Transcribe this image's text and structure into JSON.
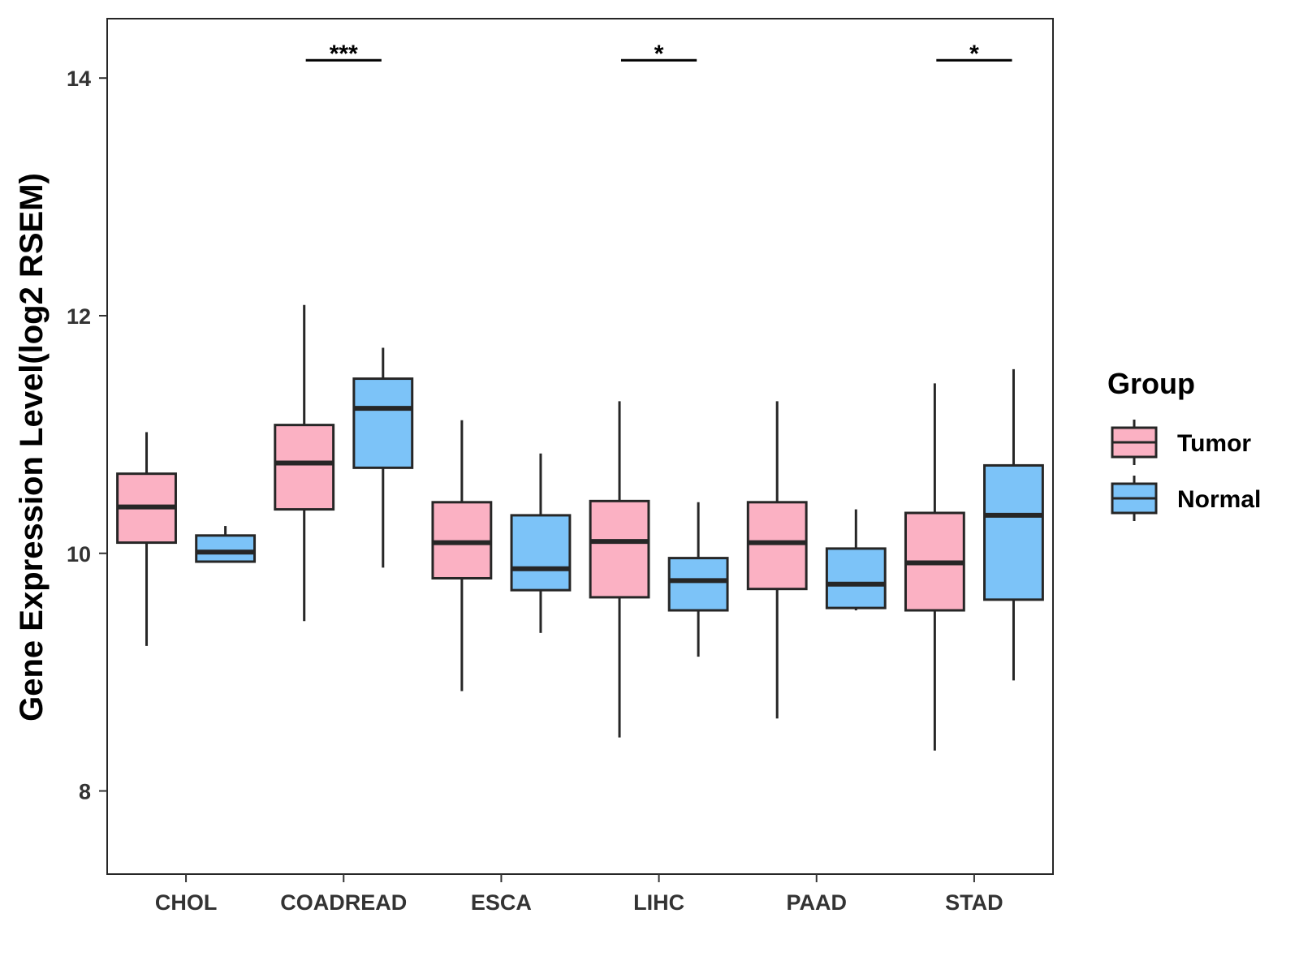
{
  "chart_data": {
    "type": "box",
    "title": "",
    "xlabel": "",
    "ylabel": "Gene Expression Level(log2 RSEM)",
    "ylim": [
      7.3,
      14.5
    ],
    "yticks": [
      8,
      10,
      12,
      14
    ],
    "categories": [
      "CHOL",
      "COADREAD",
      "ESCA",
      "LIHC",
      "PAAD",
      "STAD"
    ],
    "legend": {
      "title": "Group",
      "position": "right",
      "entries": [
        "Tumor",
        "Normal"
      ]
    },
    "grid": false,
    "colors": {
      "Tumor": "#FBB1C3",
      "Normal": "#7CC3F8",
      "outline": "#262626"
    },
    "series": [
      {
        "name": "Tumor",
        "boxes": [
          {
            "whisker_low": 9.22,
            "q1": 10.09,
            "median": 10.39,
            "q3": 10.67,
            "whisker_high": 11.02
          },
          {
            "whisker_low": 9.43,
            "q1": 10.37,
            "median": 10.76,
            "q3": 11.08,
            "whisker_high": 12.09
          },
          {
            "whisker_low": 8.84,
            "q1": 9.79,
            "median": 10.09,
            "q3": 10.43,
            "whisker_high": 11.12
          },
          {
            "whisker_low": 8.45,
            "q1": 9.63,
            "median": 10.1,
            "q3": 10.44,
            "whisker_high": 11.28
          },
          {
            "whisker_low": 8.61,
            "q1": 9.7,
            "median": 10.09,
            "q3": 10.43,
            "whisker_high": 11.28
          },
          {
            "whisker_low": 8.34,
            "q1": 9.52,
            "median": 9.92,
            "q3": 10.34,
            "whisker_high": 11.43
          }
        ]
      },
      {
        "name": "Normal",
        "boxes": [
          {
            "whisker_low": 9.93,
            "q1": 9.93,
            "median": 10.01,
            "q3": 10.15,
            "whisker_high": 10.23
          },
          {
            "whisker_low": 9.88,
            "q1": 10.72,
            "median": 11.22,
            "q3": 11.47,
            "whisker_high": 11.73
          },
          {
            "whisker_low": 9.33,
            "q1": 9.69,
            "median": 9.87,
            "q3": 10.32,
            "whisker_high": 10.84
          },
          {
            "whisker_low": 9.13,
            "q1": 9.52,
            "median": 9.77,
            "q3": 9.96,
            "whisker_high": 10.43
          },
          {
            "whisker_low": 9.52,
            "q1": 9.54,
            "median": 9.74,
            "q3": 10.04,
            "whisker_high": 10.37
          },
          {
            "whisker_low": 8.93,
            "q1": 9.61,
            "median": 10.32,
            "q3": 10.74,
            "whisker_high": 11.55
          }
        ]
      }
    ],
    "significance": [
      {
        "category": "COADREAD",
        "label": "***",
        "y": 14.15
      },
      {
        "category": "LIHC",
        "label": "*",
        "y": 14.15
      },
      {
        "category": "STAD",
        "label": "*",
        "y": 14.15
      }
    ]
  }
}
